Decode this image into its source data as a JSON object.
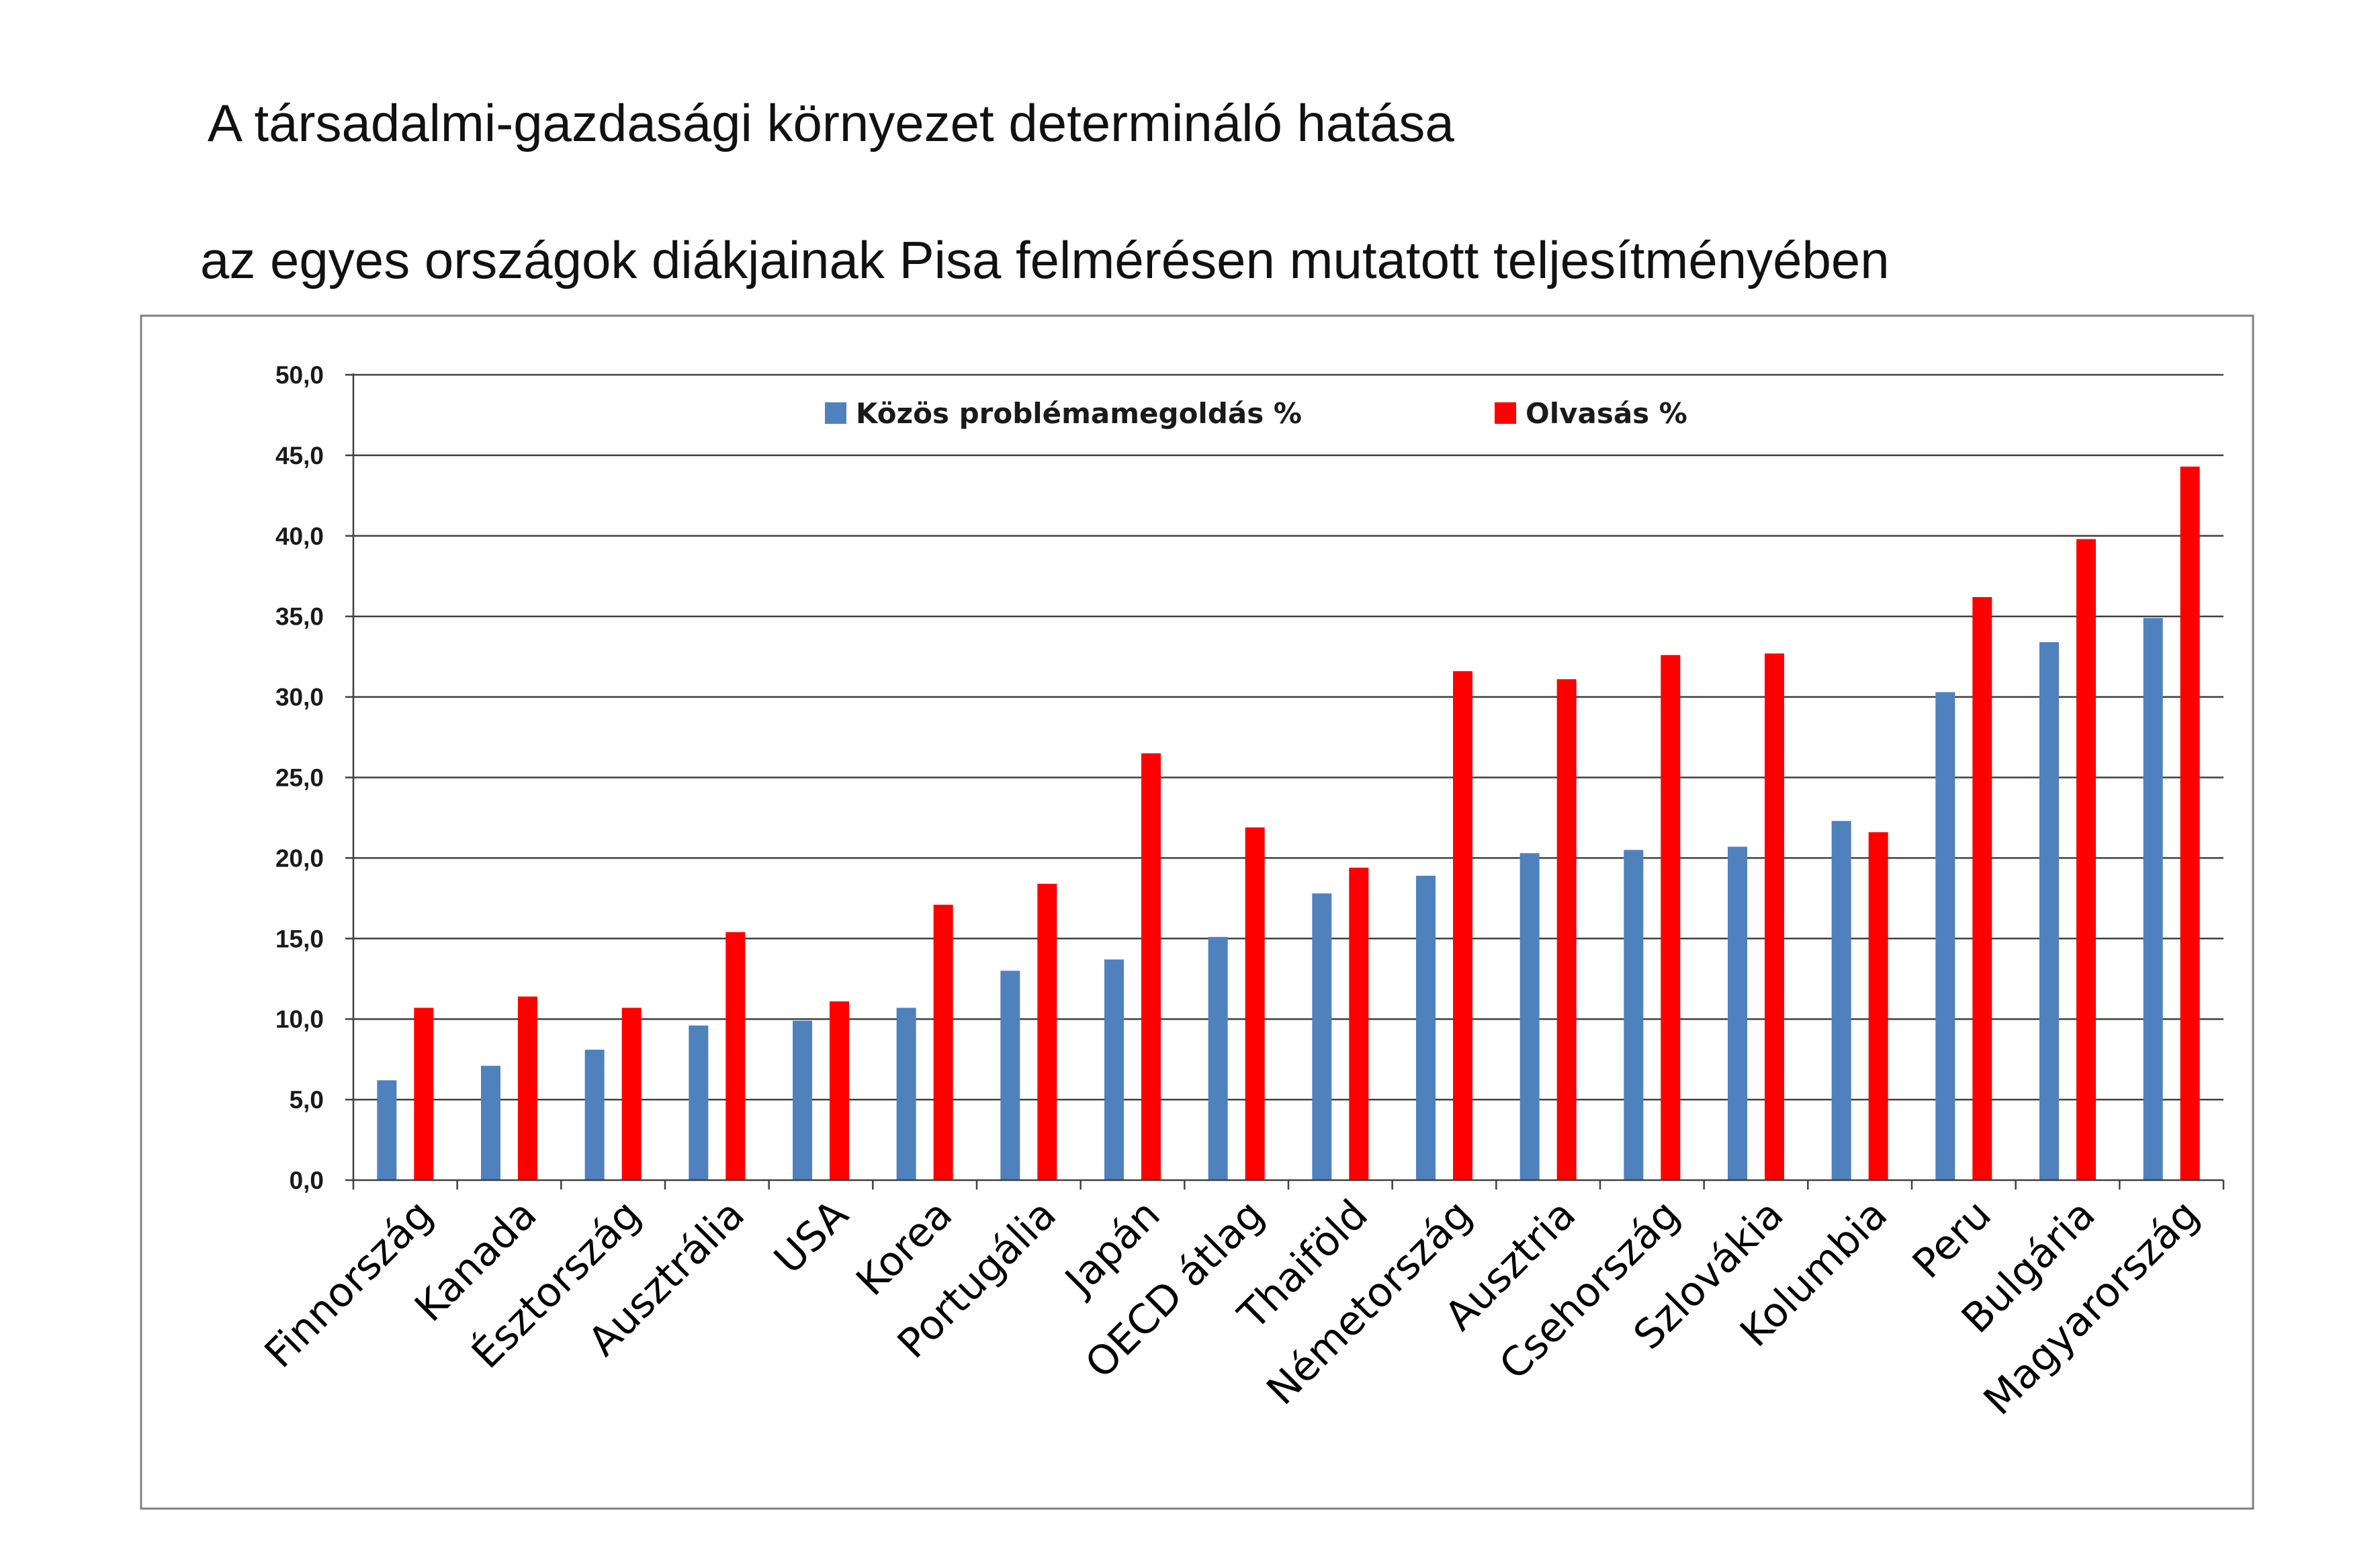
{
  "title": {
    "line1": "A társadalmi-gazdasági környezet determináló hatása",
    "line2": "az egyes országok diákjainak Pisa felmérésen mutatott teljesítményében"
  },
  "colors": {
    "series1": "#4F81BD",
    "series2": "#FF0000",
    "grid": "#404040",
    "frame": "#808080"
  },
  "chart_data": {
    "type": "bar",
    "categories": [
      "Finnország",
      "Kanada",
      "Észtország",
      "Ausztrália",
      "USA",
      "Korea",
      "Portugália",
      "Japán",
      "OECD átlag",
      "Thaiföld",
      "Németország",
      "Ausztria",
      "Csehország",
      "Szlovákia",
      "Kolumbia",
      "Peru",
      "Bulgária",
      "Magyarország"
    ],
    "series": [
      {
        "name": "Közös problémamegoldás %",
        "color": "#4F81BD",
        "values": [
          6.2,
          7.1,
          8.1,
          9.6,
          9.9,
          10.7,
          13.0,
          13.7,
          15.1,
          17.8,
          18.9,
          20.3,
          20.5,
          20.7,
          22.3,
          30.3,
          33.4,
          34.9
        ]
      },
      {
        "name": "Olvasás %",
        "color": "#FF0000",
        "values": [
          10.7,
          11.4,
          10.7,
          15.4,
          11.1,
          17.1,
          18.4,
          26.5,
          21.9,
          19.4,
          31.6,
          31.1,
          32.6,
          32.7,
          21.6,
          36.2,
          39.8,
          44.3
        ]
      }
    ],
    "yticks": [
      "0,0",
      "5,0",
      "10,0",
      "15,0",
      "20,0",
      "25,0",
      "30,0",
      "35,0",
      "40,0",
      "45,0",
      "50,0"
    ],
    "ylim": [
      0,
      50
    ],
    "grid": true,
    "legend_position": "top"
  }
}
